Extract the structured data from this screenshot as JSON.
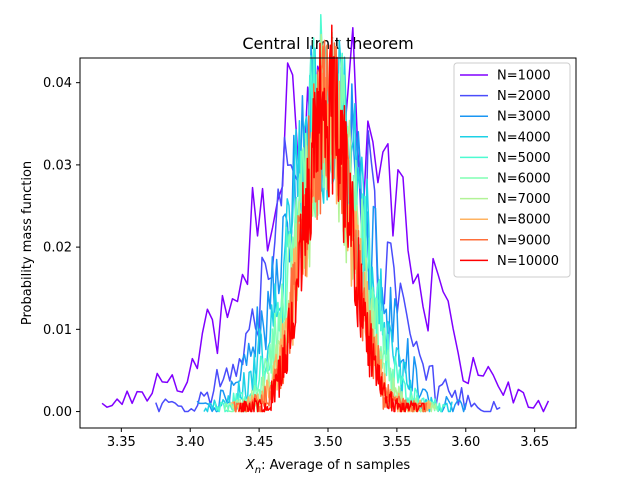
{
  "chart_data": {
    "type": "line",
    "title": "Central limit theorem",
    "xlabel_prefix": "X",
    "xlabel_sub": "n",
    "xlabel_suffix": ": Average of n samples",
    "ylabel": "Probability mass function",
    "xlim": [
      3.32,
      3.68
    ],
    "ylim": [
      -0.002,
      0.043
    ],
    "x_ticks": [
      3.35,
      3.4,
      3.45,
      3.5,
      3.55,
      3.6,
      3.65
    ],
    "x_tick_labels": [
      "3.35",
      "3.40",
      "3.45",
      "3.50",
      "3.55",
      "3.60",
      "3.65"
    ],
    "y_ticks": [
      0.0,
      0.01,
      0.02,
      0.03,
      0.04
    ],
    "y_tick_labels": [
      "0.00",
      "0.01",
      "0.02",
      "0.03",
      "0.04"
    ],
    "grid": false,
    "legend_position": "top-right",
    "series": [
      {
        "name": "N=1000",
        "color": "#8000ff",
        "x_start": 3.336,
        "x_end": 3.66,
        "spread": 0.054,
        "peak": 0.036,
        "seed": 11
      },
      {
        "name": "N=2000",
        "color": "#4a4cfb",
        "x_start": 3.375,
        "x_end": 3.625,
        "spread": 0.036,
        "peak": 0.035,
        "seed": 23
      },
      {
        "name": "N=3000",
        "color": "#1996f3",
        "x_start": 3.405,
        "x_end": 3.6,
        "spread": 0.03,
        "peak": 0.036,
        "seed": 37
      },
      {
        "name": "N=4000",
        "color": "#1cd1e6",
        "x_start": 3.41,
        "x_end": 3.59,
        "spread": 0.026,
        "peak": 0.038,
        "seed": 41
      },
      {
        "name": "N=5000",
        "color": "#4efbd1",
        "x_start": 3.418,
        "x_end": 3.585,
        "spread": 0.024,
        "peak": 0.037,
        "seed": 53
      },
      {
        "name": "N=6000",
        "color": "#80ffb4",
        "x_start": 3.425,
        "x_end": 3.58,
        "spread": 0.022,
        "peak": 0.036,
        "seed": 61
      },
      {
        "name": "N=7000",
        "color": "#b2f396",
        "x_start": 3.428,
        "x_end": 3.578,
        "spread": 0.02,
        "peak": 0.035,
        "seed": 73
      },
      {
        "name": "N=8000",
        "color": "#ffb360",
        "x_start": 3.43,
        "x_end": 3.575,
        "spread": 0.019,
        "peak": 0.035,
        "seed": 89
      },
      {
        "name": "N=9000",
        "color": "#ff6e3a",
        "x_start": 3.432,
        "x_end": 3.572,
        "spread": 0.018,
        "peak": 0.036,
        "seed": 97
      },
      {
        "name": "N=10000",
        "color": "#ff0000",
        "x_start": 3.435,
        "x_end": 3.57,
        "spread": 0.017,
        "peak": 0.037,
        "seed": 101
      }
    ]
  }
}
